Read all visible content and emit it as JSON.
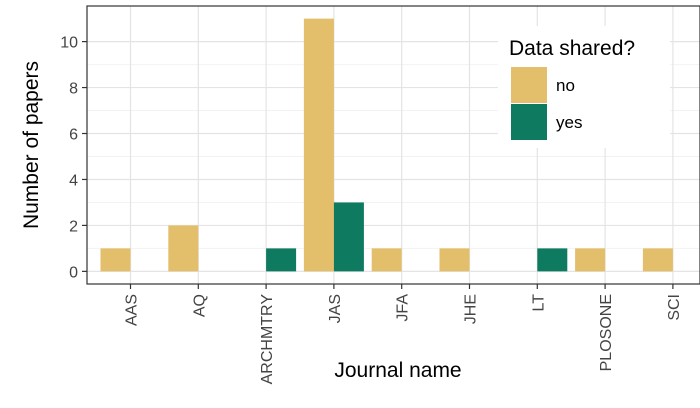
{
  "chart_data": {
    "type": "bar",
    "title": "",
    "xlabel": "Journal name",
    "ylabel": "Number of papers",
    "categories": [
      "AAS",
      "AQ",
      "ARCHMTRY",
      "JAS",
      "JFA",
      "JHE",
      "LT",
      "PLOSONE",
      "SCI"
    ],
    "series": [
      {
        "name": "no",
        "color": "#E3BE6B",
        "values": [
          1,
          2,
          0,
          11,
          1,
          1,
          0,
          1,
          1
        ]
      },
      {
        "name": "yes",
        "color": "#0E7A5F",
        "values": [
          0,
          0,
          1,
          3,
          0,
          0,
          1,
          0,
          0
        ]
      }
    ],
    "yticks": [
      0,
      2,
      4,
      6,
      8,
      10
    ],
    "ylim": [
      -0.55,
      11.55
    ],
    "grid": true,
    "legend": {
      "title": "Data shared?",
      "position": "top-right"
    }
  }
}
